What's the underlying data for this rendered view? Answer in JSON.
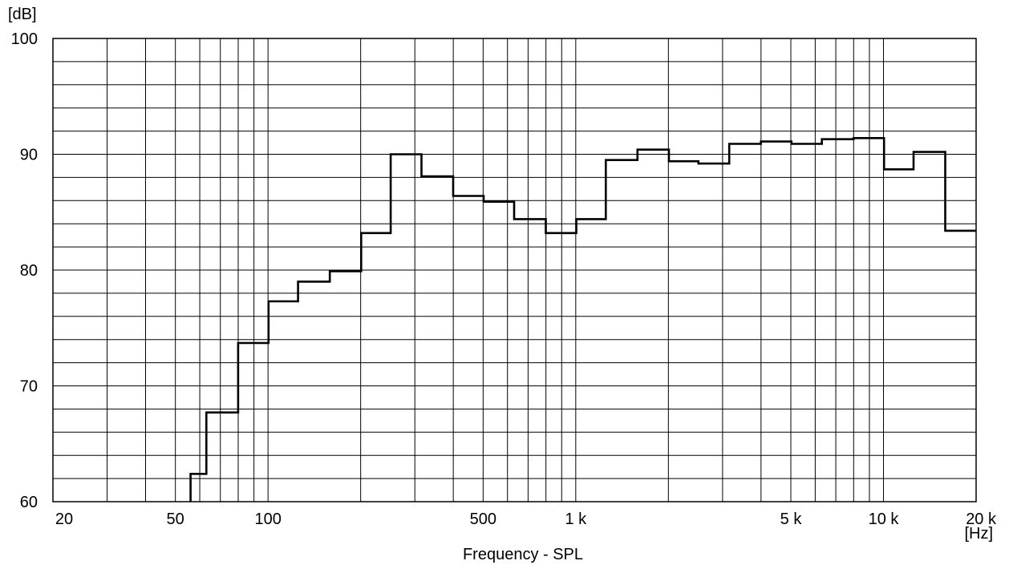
{
  "chart_data": {
    "type": "line",
    "title": "",
    "xlabel": "Frequency -  SPL",
    "ylabel": "[dB]",
    "xunit": "[Hz]",
    "xscale": "log",
    "xlim": [
      20,
      20000
    ],
    "ylim": [
      60,
      100
    ],
    "grid": true,
    "step_style": "third-octave steps",
    "x_ticks": [
      {
        "value": 20,
        "label": "20"
      },
      {
        "value": 50,
        "label": "50"
      },
      {
        "value": 100,
        "label": "100"
      },
      {
        "value": 500,
        "label": "500"
      },
      {
        "value": 1000,
        "label": "1 k"
      },
      {
        "value": 5000,
        "label": "5 k"
      },
      {
        "value": 10000,
        "label": "10 k"
      },
      {
        "value": 20000,
        "label": "20 k"
      }
    ],
    "y_ticks": [
      {
        "value": 60,
        "label": "60"
      },
      {
        "value": 70,
        "label": "70"
      },
      {
        "value": 80,
        "label": "80"
      },
      {
        "value": 90,
        "label": "90"
      },
      {
        "value": 100,
        "label": "100"
      }
    ],
    "x": [
      56,
      71,
      90,
      112,
      140,
      180,
      224,
      280,
      355,
      450,
      560,
      710,
      900,
      1120,
      1400,
      1800,
      2240,
      2800,
      3550,
      4500,
      5600,
      7100,
      9000,
      11200,
      14000,
      18000
    ],
    "values": [
      62.4,
      67.7,
      73.7,
      77.3,
      79.0,
      79.9,
      83.2,
      90.0,
      88.1,
      86.4,
      85.9,
      84.4,
      83.2,
      84.4,
      89.5,
      90.4,
      89.4,
      89.2,
      90.9,
      91.1,
      90.9,
      91.3,
      91.4,
      88.7,
      90.2,
      83.4
    ],
    "line_color": "#000000",
    "grid_color": "#000000"
  }
}
